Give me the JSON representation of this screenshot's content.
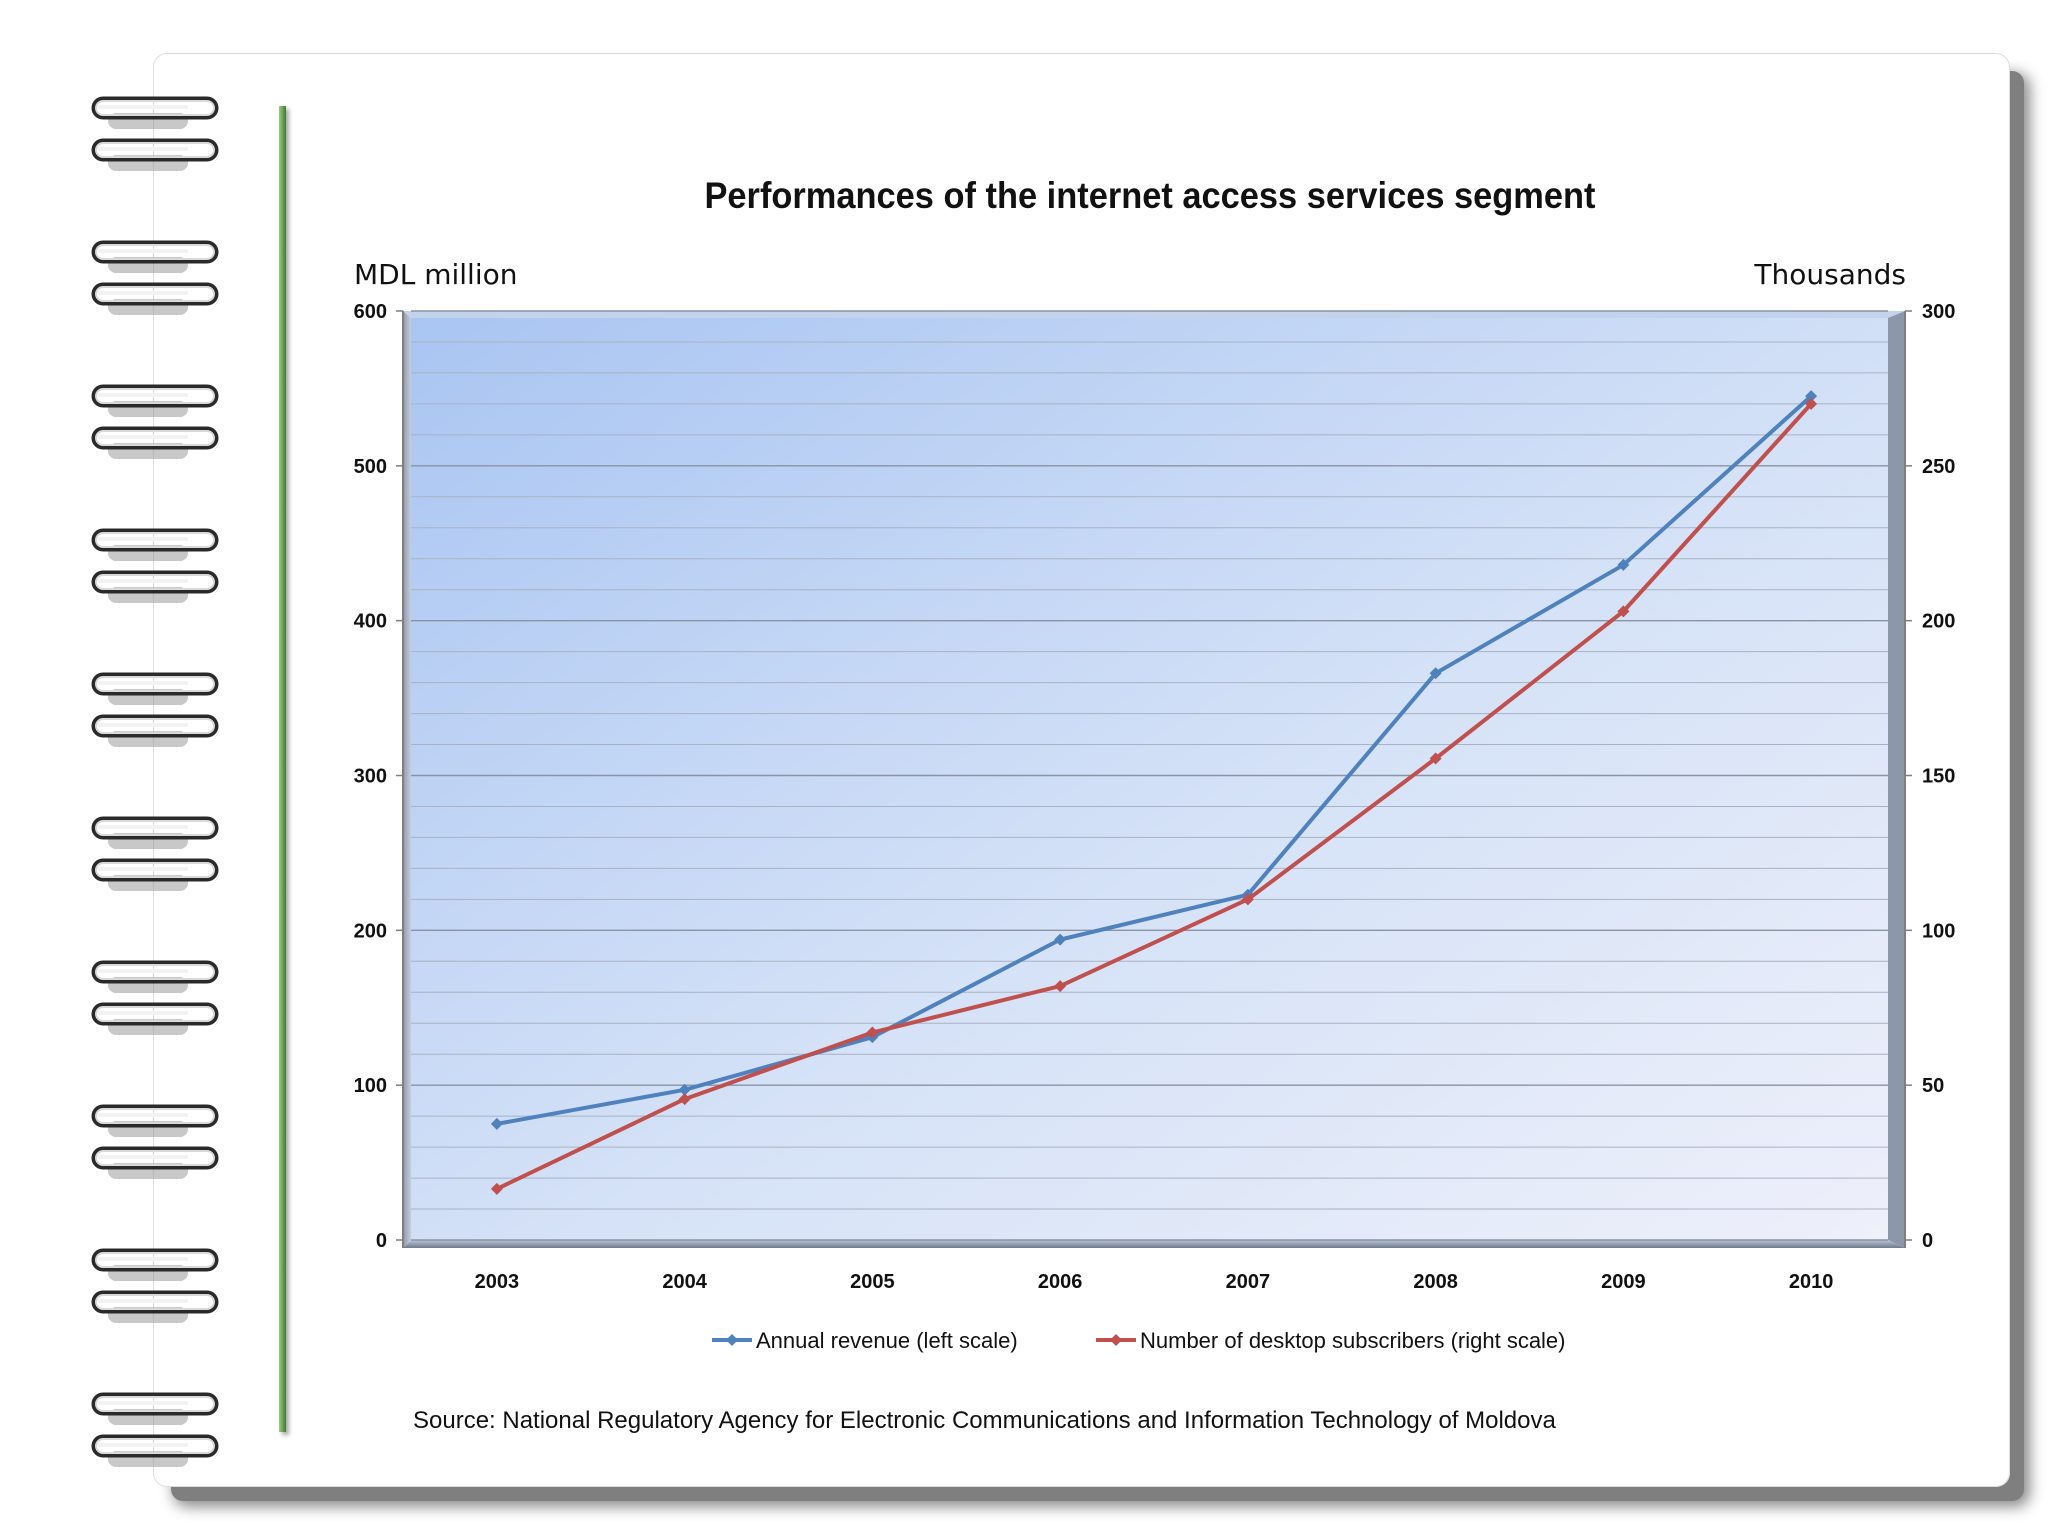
{
  "chart_data": {
    "type": "line",
    "title": "Performances of the internet access services segment",
    "ylabel_left": "MDL million",
    "ylabel_right": "Thousands",
    "categories": [
      "2003",
      "2004",
      "2005",
      "2006",
      "2007",
      "2008",
      "2009",
      "2010"
    ],
    "ylim_left": [
      0,
      600
    ],
    "ylim_right": [
      0,
      300
    ],
    "yticks_left": [
      "0",
      "100",
      "200",
      "300",
      "400",
      "500",
      "600"
    ],
    "yticks_right": [
      "0",
      "50",
      "100",
      "150",
      "200",
      "250",
      "300"
    ],
    "grid": true,
    "legend_position": "bottom",
    "series": [
      {
        "name": "Annual revenue (left scale)",
        "axis": "left",
        "color": "#4f81bd",
        "values": [
          75,
          97,
          131,
          194,
          223,
          366,
          436,
          545
        ]
      },
      {
        "name": "Number of desktop subscribers (right scale)",
        "axis": "right",
        "color": "#c0504d",
        "values": [
          16.5,
          45.5,
          67,
          82,
          110,
          155.5,
          203,
          270
        ]
      }
    ],
    "source": "Source: National Regulatory Agency for Electronic Communications and Information Technology of Moldova"
  }
}
